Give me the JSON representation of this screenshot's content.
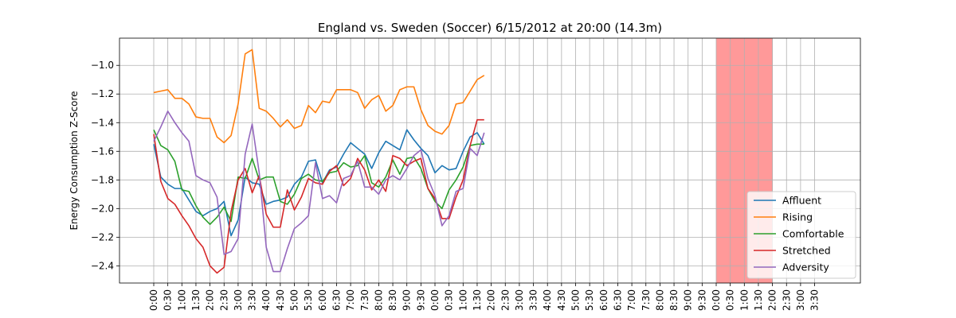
{
  "chart_data": {
    "type": "line",
    "title": "England vs. Sweden (Soccer) 6/15/2012 at 20:00 (14.3m)",
    "xlabel": "",
    "ylabel": "Energy Consumption Z-Score",
    "ylim": [
      -2.52,
      -0.81
    ],
    "yticks": [
      -1.0,
      -1.2,
      -1.4,
      -1.6,
      -1.8,
      -2.0,
      -2.2,
      -2.4
    ],
    "ytick_labels": [
      "−1.0",
      "−1.2",
      "−1.4",
      "−1.6",
      "−1.8",
      "−2.0",
      "−2.2",
      "−2.4"
    ],
    "categories": [
      "0:00",
      "0:30",
      "1:00",
      "1:30",
      "2:00",
      "2:30",
      "3:00",
      "3:30",
      "4:00",
      "4:30",
      "5:00",
      "5:30",
      "6:00",
      "6:30",
      "7:00",
      "7:30",
      "8:00",
      "8:30",
      "9:00",
      "9:30",
      "0:00",
      "0:30",
      "1:00",
      "1:30",
      "2:00",
      "2:30",
      "3:00",
      "3:30",
      "4:00",
      "4:30",
      "5:00",
      "5:30",
      "6:00",
      "6:30",
      "7:00",
      "7:30",
      "8:00",
      "8:30",
      "9:00",
      "9:30",
      "0:00",
      "0:30",
      "1:00",
      "1:30",
      "2:00",
      "2:30",
      "3:00",
      "3:30"
    ],
    "points_per_category": 2,
    "highlight": {
      "from_index": 80,
      "to_index": 88,
      "color": "#ff9999"
    },
    "grid": true,
    "legend_position": "lower-right",
    "series": [
      {
        "name": "Affluent",
        "color": "#1f77b4",
        "values": [
          -1.55,
          -1.78,
          -1.83,
          -1.86,
          -1.86,
          -1.94,
          -2.02,
          -2.05,
          -2.02,
          -2.0,
          -1.95,
          -2.19,
          -2.08,
          -1.78,
          -1.82,
          -1.83,
          -1.97,
          -1.95,
          -1.94,
          -1.92,
          -1.83,
          -1.78,
          -1.67,
          -1.66,
          -1.82,
          -1.73,
          -1.71,
          -1.62,
          -1.54,
          -1.58,
          -1.62,
          -1.72,
          -1.61,
          -1.53,
          -1.56,
          -1.59,
          -1.45,
          -1.52,
          -1.58,
          -1.63,
          -1.75,
          -1.7,
          -1.73,
          -1.72,
          -1.6,
          -1.5,
          -1.47,
          -1.55
        ]
      },
      {
        "name": "Rising",
        "color": "#ff7f0e",
        "values": [
          -1.19,
          -1.18,
          -1.17,
          -1.23,
          -1.23,
          -1.27,
          -1.36,
          -1.37,
          -1.37,
          -1.5,
          -1.54,
          -1.49,
          -1.27,
          -0.92,
          -0.89,
          -1.3,
          -1.32,
          -1.37,
          -1.43,
          -1.38,
          -1.44,
          -1.42,
          -1.28,
          -1.33,
          -1.25,
          -1.26,
          -1.17,
          -1.17,
          -1.17,
          -1.19,
          -1.3,
          -1.24,
          -1.21,
          -1.32,
          -1.28,
          -1.17,
          -1.15,
          -1.15,
          -1.31,
          -1.42,
          -1.46,
          -1.48,
          -1.42,
          -1.27,
          -1.26,
          -1.18,
          -1.1,
          -1.07
        ]
      },
      {
        "name": "Comfortable",
        "color": "#2ca02c",
        "values": [
          -1.45,
          -1.56,
          -1.59,
          -1.67,
          -1.87,
          -1.88,
          -1.98,
          -2.06,
          -2.11,
          -2.06,
          -1.99,
          -2.09,
          -1.78,
          -1.79,
          -1.65,
          -1.8,
          -1.78,
          -1.78,
          -1.95,
          -1.97,
          -1.9,
          -1.79,
          -1.76,
          -1.8,
          -1.81,
          -1.75,
          -1.74,
          -1.68,
          -1.71,
          -1.7,
          -1.63,
          -1.82,
          -1.85,
          -1.78,
          -1.66,
          -1.76,
          -1.65,
          -1.64,
          -1.72,
          -1.86,
          -1.95,
          -2.0,
          -1.87,
          -1.8,
          -1.71,
          -1.56,
          -1.55,
          -1.55
        ]
      },
      {
        "name": "Stretched",
        "color": "#d62728",
        "values": [
          -1.48,
          -1.81,
          -1.93,
          -1.97,
          -2.05,
          -2.12,
          -2.21,
          -2.27,
          -2.4,
          -2.45,
          -2.41,
          -2.02,
          -1.8,
          -1.72,
          -1.89,
          -1.77,
          -2.04,
          -2.13,
          -2.13,
          -1.87,
          -2.01,
          -1.92,
          -1.79,
          -1.82,
          -1.83,
          -1.74,
          -1.7,
          -1.84,
          -1.79,
          -1.65,
          -1.73,
          -1.87,
          -1.8,
          -1.88,
          -1.63,
          -1.65,
          -1.7,
          -1.67,
          -1.65,
          -1.86,
          -1.93,
          -2.07,
          -2.07,
          -1.92,
          -1.8,
          -1.56,
          -1.38,
          -1.38
        ]
      },
      {
        "name": "Adversity",
        "color": "#9467bd",
        "values": [
          -1.53,
          -1.43,
          -1.32,
          -1.4,
          -1.47,
          -1.53,
          -1.77,
          -1.8,
          -1.82,
          -1.92,
          -2.32,
          -2.3,
          -2.21,
          -1.62,
          -1.41,
          -1.75,
          -2.27,
          -2.44,
          -2.44,
          -2.28,
          -2.14,
          -2.1,
          -2.05,
          -1.68,
          -1.93,
          -1.91,
          -1.96,
          -1.79,
          -1.77,
          -1.67,
          -1.85,
          -1.85,
          -1.9,
          -1.8,
          -1.77,
          -1.8,
          -1.72,
          -1.63,
          -1.59,
          -1.79,
          -1.91,
          -2.12,
          -2.05,
          -1.88,
          -1.86,
          -1.58,
          -1.63,
          -1.47
        ]
      }
    ]
  }
}
